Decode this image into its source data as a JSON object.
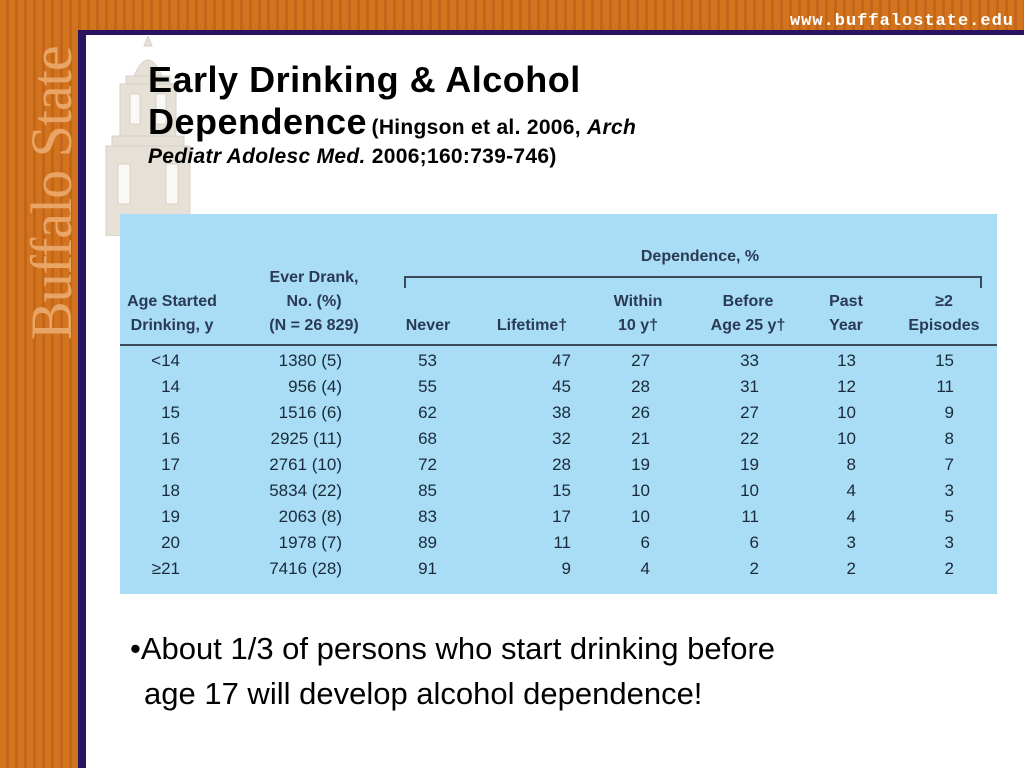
{
  "header": {
    "url": "www.buffalostate.edu"
  },
  "sidebar": {
    "brand": "Buffalo State"
  },
  "slide": {
    "title_line1": "Early Drinking & Alcohol",
    "title_line2": "Dependence",
    "citation_prefix": "(Hingson et al. 2006, ",
    "citation_journal_a": "Arch",
    "citation_journal_b": "Pediatr Adolesc Med.",
    "citation_suffix": " 2006;160:739-746)"
  },
  "table": {
    "group_header": "Dependence, %",
    "col_age": [
      "Age Started",
      "Drinking, y"
    ],
    "col_ever": [
      "Ever Drank,",
      "No. (%)",
      "(N = 26 829)"
    ],
    "col_never": "Never",
    "col_lifetime": "Lifetime†",
    "col_within": [
      "Within",
      "10 y†"
    ],
    "col_before": [
      "Before",
      "Age 25 y†"
    ],
    "col_past": [
      "Past",
      "Year"
    ],
    "col_episodes": [
      "≥2",
      "Episodes"
    ],
    "rows": [
      [
        "<14",
        "1380 (5)",
        "53",
        "47",
        "27",
        "33",
        "13",
        "15"
      ],
      [
        "14",
        "956 (4)",
        "55",
        "45",
        "28",
        "31",
        "12",
        "11"
      ],
      [
        "15",
        "1516 (6)",
        "62",
        "38",
        "26",
        "27",
        "10",
        "9"
      ],
      [
        "16",
        "2925 (11)",
        "68",
        "32",
        "21",
        "22",
        "10",
        "8"
      ],
      [
        "17",
        "2761 (10)",
        "72",
        "28",
        "19",
        "19",
        "8",
        "7"
      ],
      [
        "18",
        "5834 (22)",
        "85",
        "15",
        "10",
        "10",
        "4",
        "3"
      ],
      [
        "19",
        "2063 (8)",
        "83",
        "17",
        "10",
        "11",
        "4",
        "5"
      ],
      [
        "20",
        "1978 (7)",
        "89",
        "11",
        "6",
        "6",
        "3",
        "3"
      ],
      [
        "≥21",
        "7416 (28)",
        "91",
        "9",
        "4",
        "2",
        "2",
        "2"
      ]
    ]
  },
  "bullet": {
    "line1": "•About 1/3 of persons who start drinking before",
    "line2": "age 17 will develop alcohol dependence!"
  },
  "colors": {
    "orange": "#d2741e",
    "purple": "#2a1460",
    "table_bg": "#a9ddf5"
  }
}
